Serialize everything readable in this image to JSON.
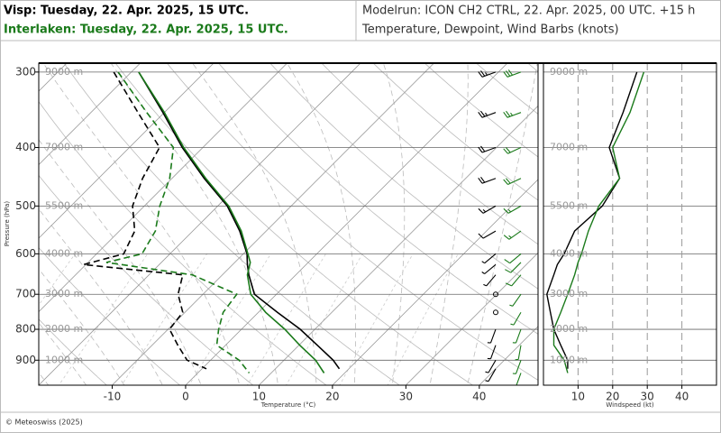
{
  "chart_data": {
    "type": "skewt",
    "title": "Modelrun: ICON CH2 CTRL, 22. Apr. 2025, 00 UTC. +15 h",
    "subtitle": "Temperature, Dewpoint, Wind Barbs (knots)",
    "footer": "© Meteoswiss (2025)",
    "ylabel": "Pressure (hPa)",
    "ylim": [
      990,
      290
    ],
    "yticks": [
      300,
      400,
      500,
      600,
      700,
      800,
      900
    ],
    "log_y": true,
    "height_labels": [
      "9000 m",
      "7000 m",
      "5500 m",
      "4000 m",
      "3000 m",
      "2000 m",
      "1000 m"
    ],
    "xlabel": "Temperature (°C)",
    "xlim": [
      -20,
      48
    ],
    "xticks": [
      -10,
      0,
      10,
      20,
      30,
      40
    ],
    "wind_xlabel": "Windspeed (kt)",
    "wind_xlim": [
      0,
      50
    ],
    "wind_xticks": [
      10,
      20,
      30,
      40
    ],
    "series": [
      {
        "name": "Visp: Tuesday, 22. Apr. 2025, 15 UTC.",
        "color": "#000000",
        "pressure": [
          300,
          350,
          400,
          450,
          500,
          550,
          600,
          625,
          650,
          700,
          750,
          800,
          850,
          900,
          930
        ],
        "temperature": [
          -49.0,
          -40.2,
          -32.8,
          -25.6,
          -18.7,
          -13.6,
          -9.5,
          -8.0,
          -6.4,
          -3.0,
          2.6,
          8.0,
          12.5,
          16.7,
          18.7
        ],
        "dewpoint": [
          -52.4,
          -43.6,
          -35.9,
          -34.0,
          -31.6,
          -27.9,
          -26.3,
          -30.3,
          -15.4,
          -13.4,
          -10.3,
          -9.8,
          -6.5,
          -3.2,
          0.6
        ],
        "wind_speed": [
          27,
          23,
          19,
          22,
          17,
          9,
          6,
          4,
          3,
          1,
          2,
          3,
          5,
          7,
          7
        ],
        "wind_direction": [
          250,
          250,
          250,
          250,
          240,
          240,
          230,
          230,
          220,
          220,
          200,
          200,
          200,
          210,
          210
        ]
      },
      {
        "name": "Interlaken: Tuesday, 22. Apr. 2025, 15 UTC.",
        "color": "#1a7a1a",
        "pressure": [
          300,
          350,
          400,
          450,
          500,
          550,
          600,
          620,
          650,
          700,
          750,
          800,
          850,
          900,
          945
        ],
        "temperature": [
          -49.0,
          -40.0,
          -32.6,
          -25.4,
          -18.5,
          -13.4,
          -9.4,
          -7.9,
          -6.6,
          -3.5,
          1.0,
          5.9,
          10.1,
          14.3,
          17.2
        ],
        "dewpoint": [
          -51.8,
          -42.4,
          -34.0,
          -30.3,
          -27.9,
          -25.1,
          -23.8,
          -27.5,
          -14.1,
          -5.4,
          -4.8,
          -3.1,
          -1.2,
          3.9,
          7.0
        ],
        "wind_speed": [
          29,
          25,
          20,
          22,
          16,
          13,
          11,
          10,
          9,
          7,
          5,
          3,
          3,
          6,
          7
        ],
        "wind_direction": [
          250,
          250,
          245,
          245,
          240,
          235,
          230,
          225,
          220,
          215,
          210,
          200,
          190,
          200,
          200
        ]
      }
    ]
  }
}
